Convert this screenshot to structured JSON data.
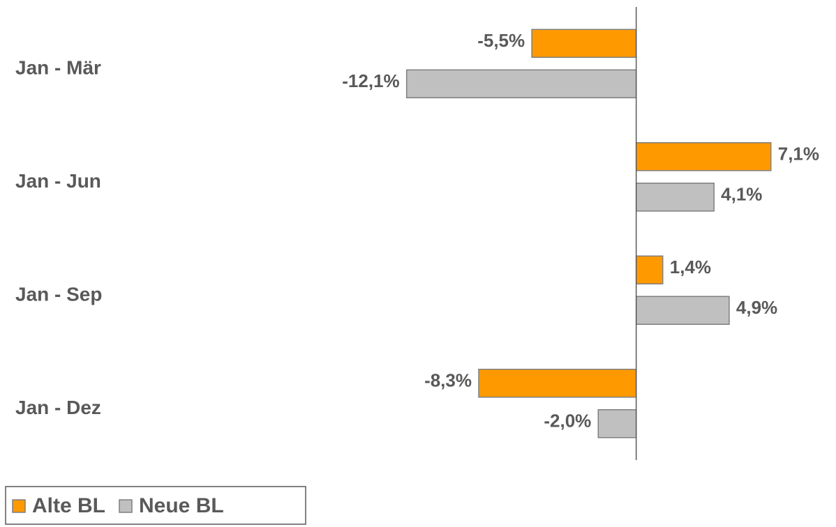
{
  "chart_data": {
    "type": "hbar",
    "categories": [
      "Jan - Mär",
      "Jan - Jun",
      "Jan - Sep",
      "Jan - Dez"
    ],
    "series": [
      {
        "name": "Alte BL",
        "color": "#ff9900",
        "values": [
          -5.5,
          7.1,
          1.4,
          -8.3
        ],
        "value_labels": [
          "-5,5%",
          "7,1%",
          "1,4%",
          "-8,3%"
        ]
      },
      {
        "name": "Neue BL",
        "color": "#c0c0c0",
        "values": [
          -12.1,
          4.1,
          4.9,
          -2.0
        ],
        "value_labels": [
          "-12,1%",
          "4,1%",
          "4,9%",
          "-2,0%"
        ]
      }
    ],
    "xlim": [
      -14,
      9.5
    ],
    "legend": "bottom-left"
  }
}
